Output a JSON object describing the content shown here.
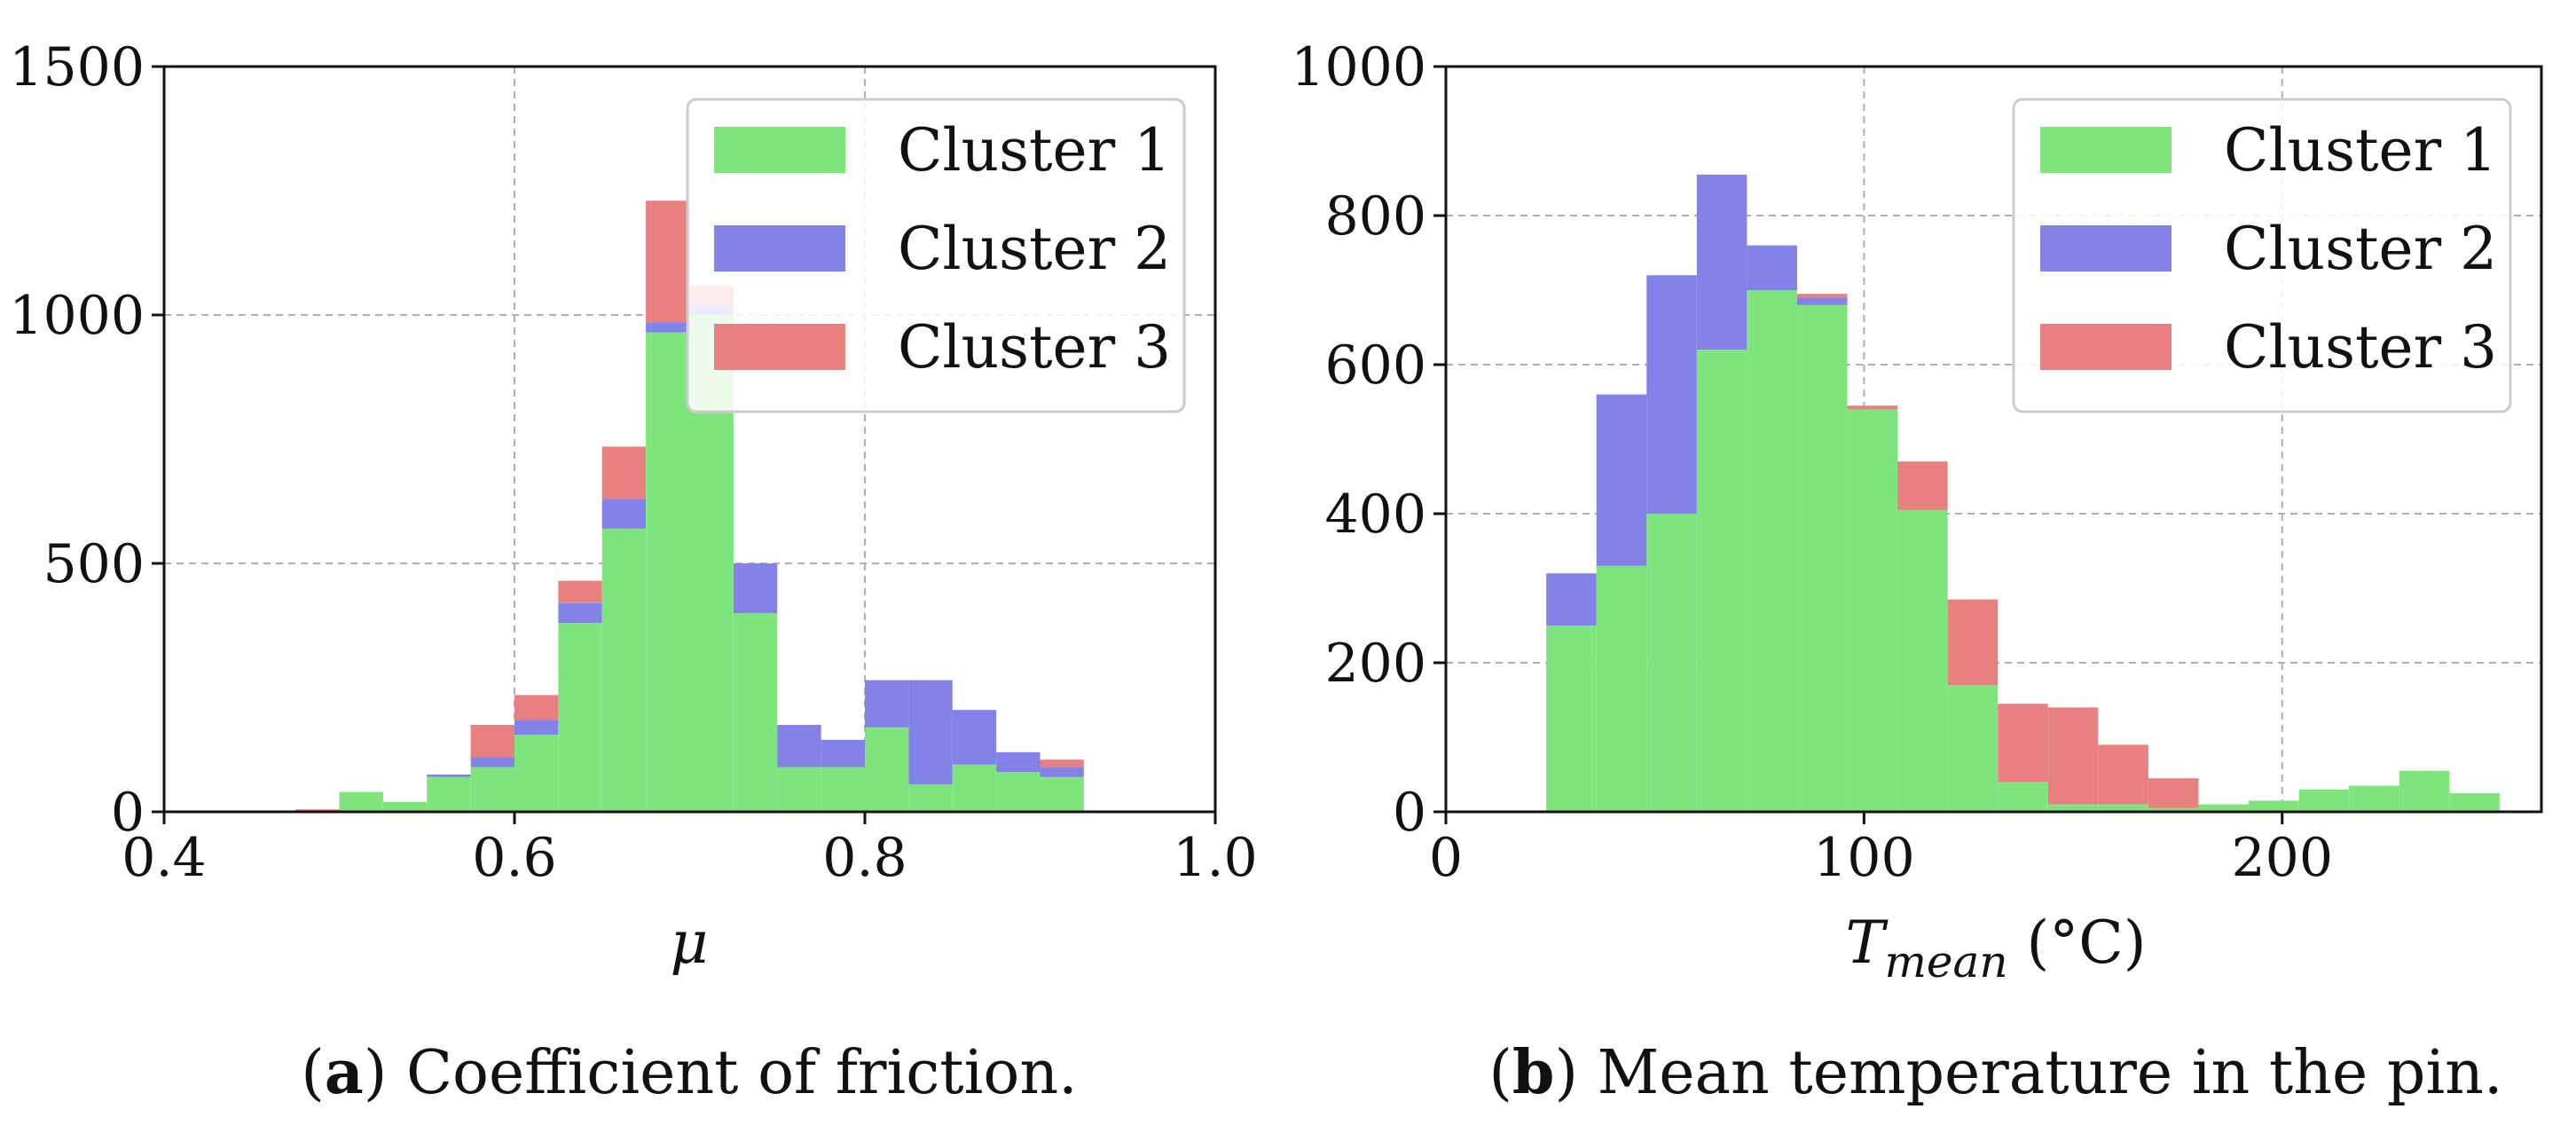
{
  "colors": {
    "cluster1": "#7ee57e",
    "cluster2": "#8282e8",
    "cluster3": "#e88080",
    "grid": "#b0b0b0"
  },
  "chart_data": [
    {
      "type": "bar",
      "stacked": true,
      "xlabel": "μ",
      "ylabel": "",
      "xlim": [
        0.4,
        1.0
      ],
      "ylim": [
        0,
        1500
      ],
      "xticks": [
        "0.4",
        "0.6",
        "0.8",
        "1.0"
      ],
      "yticks": [
        "0",
        "500",
        "1000",
        "1500"
      ],
      "xtick_values": [
        0.4,
        0.6,
        0.8,
        1.0
      ],
      "ytick_values": [
        0,
        500,
        1000,
        1500
      ],
      "grid": true,
      "legend_position": "top-right",
      "bin_edges": [
        0.475,
        0.5,
        0.525,
        0.55,
        0.575,
        0.6,
        0.625,
        0.65,
        0.675,
        0.7,
        0.725,
        0.75,
        0.775,
        0.8,
        0.825,
        0.85,
        0.875,
        0.9,
        0.925
      ],
      "series": [
        {
          "name": "Cluster 1",
          "values": [
            0,
            40,
            20,
            70,
            90,
            155,
            380,
            570,
            965,
            1000,
            400,
            90,
            90,
            170,
            55,
            95,
            80,
            70
          ]
        },
        {
          "name": "Cluster 2",
          "values": [
            0,
            0,
            0,
            5,
            20,
            30,
            40,
            60,
            20,
            20,
            100,
            85,
            55,
            95,
            210,
            110,
            40,
            20
          ]
        },
        {
          "name": "Cluster 3",
          "values": [
            5,
            0,
            0,
            0,
            65,
            50,
            45,
            105,
            245,
            40,
            0,
            0,
            0,
            0,
            0,
            0,
            0,
            15
          ]
        }
      ],
      "trailing_bin": {
        "edges": [
          0.9,
          0.925
        ],
        "cluster3_value": 15
      },
      "caption_label": "a",
      "caption_text": " Coefficient of friction."
    },
    {
      "type": "bar",
      "stacked": true,
      "xlabel": "T",
      "xlabel_sub": "mean",
      "xlabel_unit": " (°C)",
      "ylabel": "",
      "xlim": [
        0,
        262
      ],
      "ylim": [
        0,
        1000
      ],
      "xticks": [
        "0",
        "100",
        "200"
      ],
      "yticks": [
        "0",
        "200",
        "400",
        "600",
        "800",
        "1000"
      ],
      "xtick_values": [
        0,
        100,
        200
      ],
      "ytick_values": [
        0,
        200,
        400,
        600,
        800,
        1000
      ],
      "grid": true,
      "legend_position": "top-right",
      "bin_edges": [
        24,
        36,
        48,
        60,
        72,
        84,
        96,
        108,
        120,
        132,
        144,
        156,
        168,
        180,
        192,
        204,
        216,
        228,
        240,
        252
      ],
      "series": [
        {
          "name": "Cluster 1",
          "values": [
            250,
            330,
            400,
            620,
            700,
            680,
            540,
            405,
            170,
            40,
            10,
            10,
            5,
            10,
            15,
            30,
            35,
            55,
            25
          ]
        },
        {
          "name": "Cluster 2",
          "values": [
            70,
            230,
            320,
            235,
            60,
            10,
            0,
            0,
            0,
            0,
            0,
            0,
            0,
            0,
            0,
            0,
            0,
            0,
            0
          ]
        },
        {
          "name": "Cluster 3",
          "values": [
            0,
            0,
            0,
            0,
            0,
            5,
            5,
            65,
            115,
            105,
            130,
            80,
            40,
            0,
            0,
            0,
            0,
            0,
            0
          ]
        }
      ],
      "caption_label": "b",
      "caption_text": " Mean temperature in the pin."
    }
  ],
  "legend": [
    "Cluster 1",
    "Cluster 2",
    "Cluster 3"
  ]
}
